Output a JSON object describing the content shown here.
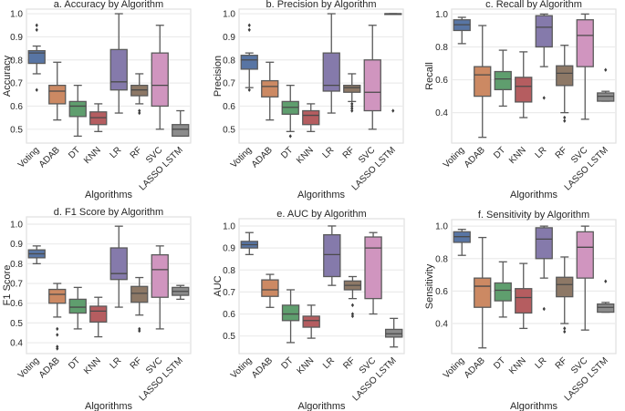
{
  "colors": {
    "Voting": "#5875a4",
    "ADAB": "#cc8963",
    "DT": "#5f9e6e",
    "KNN": "#b55d60",
    "LR": "#857aab",
    "RF": "#8d7866",
    "SVC": "#d095bf",
    "LASSO LSTM": "#8c8c8c",
    "grid": "#ebebeb",
    "median_line": "#4a4a4a",
    "whisker": "#5a5a5a"
  },
  "chart_data": [
    {
      "type": "box",
      "title": "a. Accuracy by Algorithm",
      "xlabel": "Algorithms",
      "ylabel": "Accuracy",
      "ylim": [
        0.44,
        1.02
      ],
      "yticks": [
        0.5,
        0.6,
        0.7,
        0.8,
        0.9,
        1.0
      ],
      "tick_format": 1,
      "grid": true,
      "categories": [
        "Voting",
        "ADAB",
        "DT",
        "KNN",
        "LR",
        "RF",
        "SVC",
        "LASSO LSTM"
      ],
      "boxes": [
        {
          "whislo": 0.74,
          "q1": 0.785,
          "med": 0.83,
          "q3": 0.84,
          "whishi": 0.86,
          "fliers": [
            0.67,
            0.93,
            0.95
          ]
        },
        {
          "whislo": 0.54,
          "q1": 0.61,
          "med": 0.665,
          "q3": 0.69,
          "whishi": 0.79,
          "fliers": []
        },
        {
          "whislo": 0.47,
          "q1": 0.555,
          "med": 0.6,
          "q3": 0.62,
          "whishi": 0.69,
          "fliers": []
        },
        {
          "whislo": 0.49,
          "q1": 0.52,
          "med": 0.55,
          "q3": 0.575,
          "whishi": 0.61,
          "fliers": []
        },
        {
          "whislo": 0.57,
          "q1": 0.67,
          "med": 0.705,
          "q3": 0.845,
          "whishi": 1.0,
          "fliers": []
        },
        {
          "whislo": 0.61,
          "q1": 0.645,
          "med": 0.67,
          "q3": 0.69,
          "whishi": 0.74,
          "fliers": [
            0.57,
            0.58
          ]
        },
        {
          "whislo": 0.5,
          "q1": 0.6,
          "med": 0.69,
          "q3": 0.83,
          "whishi": 0.95,
          "fliers": []
        },
        {
          "whislo": 0.47,
          "q1": 0.47,
          "med": 0.5,
          "q3": 0.52,
          "whishi": 0.58,
          "fliers": []
        }
      ]
    },
    {
      "type": "box",
      "title": "b. Precision by Algorithm",
      "xlabel": "Algorithms",
      "ylabel": "Precision",
      "ylim": [
        0.44,
        1.02
      ],
      "yticks": [
        0.5,
        0.6,
        0.7,
        0.8,
        0.9,
        1.0
      ],
      "tick_format": 1,
      "grid": true,
      "categories": [
        "Voting",
        "ADAB",
        "DT",
        "KNN",
        "LR",
        "RF",
        "SVC",
        "LASSO LSTM"
      ],
      "boxes": [
        {
          "whislo": 0.68,
          "q1": 0.76,
          "med": 0.8,
          "q3": 0.82,
          "whishi": 0.83,
          "fliers": [
            0.67,
            0.93,
            0.95
          ]
        },
        {
          "whislo": 0.54,
          "q1": 0.64,
          "med": 0.685,
          "q3": 0.71,
          "whishi": 0.79,
          "fliers": []
        },
        {
          "whislo": 0.49,
          "q1": 0.565,
          "med": 0.595,
          "q3": 0.62,
          "whishi": 0.69,
          "fliers": [
            0.47
          ]
        },
        {
          "whislo": 0.49,
          "q1": 0.52,
          "med": 0.56,
          "q3": 0.58,
          "whishi": 0.61,
          "fliers": []
        },
        {
          "whislo": 0.57,
          "q1": 0.665,
          "med": 0.69,
          "q3": 0.83,
          "whishi": 1.0,
          "fliers": []
        },
        {
          "whislo": 0.62,
          "q1": 0.66,
          "med": 0.68,
          "q3": 0.69,
          "whishi": 0.74,
          "fliers": [
            0.58,
            0.59,
            0.6,
            0.61
          ]
        },
        {
          "whislo": 0.5,
          "q1": 0.58,
          "med": 0.66,
          "q3": 0.8,
          "whishi": 0.95,
          "fliers": []
        },
        {
          "whislo": 1.0,
          "q1": 1.0,
          "med": 1.0,
          "q3": 1.0,
          "whishi": 1.0,
          "fliers": [
            0.58
          ]
        }
      ]
    },
    {
      "type": "box",
      "title": "c. Recall by Algorithm",
      "xlabel": "Algorithms",
      "ylabel": "Recall",
      "ylim": [
        0.215,
        1.03
      ],
      "yticks": [
        0.4,
        0.6,
        0.8,
        1.0
      ],
      "tick_format": 1,
      "grid": true,
      "categories": [
        "Voting",
        "ADAB",
        "DT",
        "KNN",
        "LR",
        "RF",
        "SVC",
        "LASSO LSTM"
      ],
      "boxes": [
        {
          "whislo": 0.82,
          "q1": 0.9,
          "med": 0.935,
          "q3": 0.965,
          "whishi": 0.98,
          "fliers": []
        },
        {
          "whislo": 0.25,
          "q1": 0.5,
          "med": 0.63,
          "q3": 0.68,
          "whishi": 0.93,
          "fliers": []
        },
        {
          "whislo": 0.44,
          "q1": 0.54,
          "med": 0.605,
          "q3": 0.65,
          "whishi": 0.78,
          "fliers": []
        },
        {
          "whislo": 0.37,
          "q1": 0.465,
          "med": 0.56,
          "q3": 0.615,
          "whishi": 0.77,
          "fliers": []
        },
        {
          "whislo": 0.68,
          "q1": 0.8,
          "med": 0.92,
          "q3": 0.99,
          "whishi": 1.0,
          "fliers": [
            0.49
          ]
        },
        {
          "whislo": 0.4,
          "q1": 0.565,
          "med": 0.64,
          "q3": 0.685,
          "whishi": 0.81,
          "fliers": [
            0.35,
            0.37
          ]
        },
        {
          "whislo": 0.36,
          "q1": 0.68,
          "med": 0.87,
          "q3": 0.965,
          "whishi": 1.0,
          "fliers": []
        },
        {
          "whislo": 0.47,
          "q1": 0.47,
          "med": 0.5,
          "q3": 0.52,
          "whishi": 0.53,
          "fliers": [
            0.66
          ]
        }
      ]
    },
    {
      "type": "box",
      "title": "d. F1 Score by Algorithm",
      "xlabel": "Algorithms",
      "ylabel": "F1 Score",
      "ylim": [
        0.345,
        1.037
      ],
      "yticks": [
        0.4,
        0.5,
        0.6,
        0.7,
        0.8,
        0.9,
        1.0
      ],
      "tick_format": 1,
      "grid": true,
      "categories": [
        "Voting",
        "ADAB",
        "DT",
        "KNN",
        "LR",
        "RF",
        "SVC",
        "LASSO LSTM"
      ],
      "boxes": [
        {
          "whislo": 0.8,
          "q1": 0.83,
          "med": 0.85,
          "q3": 0.87,
          "whishi": 0.89,
          "fliers": []
        },
        {
          "whislo": 0.53,
          "q1": 0.6,
          "med": 0.645,
          "q3": 0.67,
          "whishi": 0.7,
          "fliers": [
            0.37,
            0.38,
            0.44,
            0.47
          ]
        },
        {
          "whislo": 0.47,
          "q1": 0.55,
          "med": 0.58,
          "q3": 0.62,
          "whishi": 0.68,
          "fliers": []
        },
        {
          "whislo": 0.43,
          "q1": 0.505,
          "med": 0.56,
          "q3": 0.585,
          "whishi": 0.63,
          "fliers": []
        },
        {
          "whislo": 0.58,
          "q1": 0.72,
          "med": 0.75,
          "q3": 0.88,
          "whishi": 0.99,
          "fliers": []
        },
        {
          "whislo": 0.54,
          "q1": 0.605,
          "med": 0.65,
          "q3": 0.685,
          "whishi": 0.73,
          "fliers": [
            0.46,
            0.47
          ]
        },
        {
          "whislo": 0.47,
          "q1": 0.63,
          "med": 0.77,
          "q3": 0.845,
          "whishi": 0.89,
          "fliers": []
        },
        {
          "whislo": 0.62,
          "q1": 0.64,
          "med": 0.66,
          "q3": 0.68,
          "whishi": 0.69,
          "fliers": []
        }
      ]
    },
    {
      "type": "box",
      "title": "e. AUC by Algorithm",
      "xlabel": "Algorithms",
      "ylabel": "AUC",
      "ylim": [
        0.42,
        1.033
      ],
      "yticks": [
        0.5,
        0.6,
        0.7,
        0.8,
        0.9,
        1.0
      ],
      "tick_format": 1,
      "grid": true,
      "categories": [
        "Voting",
        "ADAB",
        "DT",
        "KNN",
        "LR",
        "RF",
        "SVC",
        "LASSO LSTM"
      ],
      "boxes": [
        {
          "whislo": 0.87,
          "q1": 0.9,
          "med": 0.915,
          "q3": 0.93,
          "whishi": 0.97,
          "fliers": []
        },
        {
          "whislo": 0.63,
          "q1": 0.68,
          "med": 0.71,
          "q3": 0.755,
          "whishi": 0.78,
          "fliers": []
        },
        {
          "whislo": 0.47,
          "q1": 0.57,
          "med": 0.6,
          "q3": 0.64,
          "whishi": 0.71,
          "fliers": []
        },
        {
          "whislo": 0.49,
          "q1": 0.54,
          "med": 0.57,
          "q3": 0.59,
          "whishi": 0.64,
          "fliers": []
        },
        {
          "whislo": 0.73,
          "q1": 0.77,
          "med": 0.87,
          "q3": 0.96,
          "whishi": 1.0,
          "fliers": []
        },
        {
          "whislo": 0.67,
          "q1": 0.71,
          "med": 0.73,
          "q3": 0.75,
          "whishi": 0.77,
          "fliers": [
            0.59,
            0.6,
            0.64
          ]
        },
        {
          "whislo": 0.6,
          "q1": 0.67,
          "med": 0.9,
          "q3": 0.95,
          "whishi": 0.97,
          "fliers": []
        },
        {
          "whislo": 0.45,
          "q1": 0.495,
          "med": 0.51,
          "q3": 0.53,
          "whishi": 0.58,
          "fliers": []
        }
      ]
    },
    {
      "type": "box",
      "title": "f. Sensitivity by Algorithm",
      "xlabel": "Algorithms",
      "ylabel": "Sensitivity",
      "ylim": [
        0.215,
        1.04
      ],
      "yticks": [
        0.4,
        0.6,
        0.8,
        1.0
      ],
      "tick_format": 1,
      "grid": true,
      "categories": [
        "Voting",
        "ADAB",
        "DT",
        "KNN",
        "LR",
        "RF",
        "SVC",
        "LASSO LSTM"
      ],
      "boxes": [
        {
          "whislo": 0.82,
          "q1": 0.9,
          "med": 0.935,
          "q3": 0.965,
          "whishi": 0.98,
          "fliers": []
        },
        {
          "whislo": 0.25,
          "q1": 0.5,
          "med": 0.63,
          "q3": 0.68,
          "whishi": 0.93,
          "fliers": []
        },
        {
          "whislo": 0.44,
          "q1": 0.54,
          "med": 0.605,
          "q3": 0.65,
          "whishi": 0.78,
          "fliers": []
        },
        {
          "whislo": 0.37,
          "q1": 0.465,
          "med": 0.56,
          "q3": 0.615,
          "whishi": 0.77,
          "fliers": []
        },
        {
          "whislo": 0.68,
          "q1": 0.8,
          "med": 0.92,
          "q3": 0.99,
          "whishi": 1.0,
          "fliers": [
            0.49
          ]
        },
        {
          "whislo": 0.4,
          "q1": 0.565,
          "med": 0.64,
          "q3": 0.685,
          "whishi": 0.81,
          "fliers": [
            0.35,
            0.37
          ]
        },
        {
          "whislo": 0.36,
          "q1": 0.68,
          "med": 0.87,
          "q3": 0.965,
          "whishi": 1.0,
          "fliers": []
        },
        {
          "whislo": 0.47,
          "q1": 0.47,
          "med": 0.5,
          "q3": 0.52,
          "whishi": 0.53,
          "fliers": [
            0.66
          ]
        }
      ]
    }
  ]
}
